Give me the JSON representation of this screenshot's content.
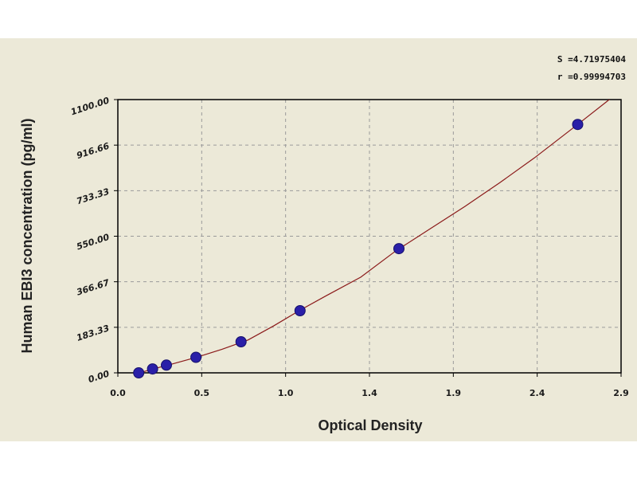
{
  "chart_data": {
    "type": "scatter",
    "xlabel": "Optical Density",
    "ylabel": "Human EBI3 concentration (pg/ml)",
    "xlim": [
      0.0,
      2.9
    ],
    "ylim": [
      0.0,
      1100.0
    ],
    "x_ticks": [
      "0.0",
      "0.5",
      "1.0",
      "1.4",
      "1.9",
      "2.4",
      "2.9"
    ],
    "y_ticks": [
      "0.00",
      "183.33",
      "366.67",
      "550.00",
      "733.33",
      "916.66",
      "1100.00"
    ],
    "grid": true,
    "stats": {
      "s_label": "S =4.71975404",
      "r_label": "r =0.99994703"
    },
    "colors": {
      "points": "#2a1fa8",
      "curve": "#8b1a1a",
      "background": "#ece9d8"
    },
    "points": [
      {
        "x": 0.12,
        "y": 0.0
      },
      {
        "x": 0.2,
        "y": 15.6
      },
      {
        "x": 0.28,
        "y": 31.2
      },
      {
        "x": 0.45,
        "y": 62.5
      },
      {
        "x": 0.71,
        "y": 125.0
      },
      {
        "x": 1.05,
        "y": 250.0
      },
      {
        "x": 1.62,
        "y": 500.0
      },
      {
        "x": 2.65,
        "y": 1000.0
      }
    ],
    "fit_curve": [
      {
        "x": 0.1,
        "y": -5
      },
      {
        "x": 0.2,
        "y": 15
      },
      {
        "x": 0.3,
        "y": 33
      },
      {
        "x": 0.45,
        "y": 62
      },
      {
        "x": 0.6,
        "y": 95
      },
      {
        "x": 0.75,
        "y": 132
      },
      {
        "x": 0.9,
        "y": 190
      },
      {
        "x": 1.05,
        "y": 252
      },
      {
        "x": 1.2,
        "y": 310
      },
      {
        "x": 1.4,
        "y": 385
      },
      {
        "x": 1.6,
        "y": 490
      },
      {
        "x": 1.8,
        "y": 580
      },
      {
        "x": 2.0,
        "y": 670
      },
      {
        "x": 2.2,
        "y": 765
      },
      {
        "x": 2.4,
        "y": 865
      },
      {
        "x": 2.65,
        "y": 1000
      },
      {
        "x": 2.85,
        "y": 1110
      }
    ]
  }
}
